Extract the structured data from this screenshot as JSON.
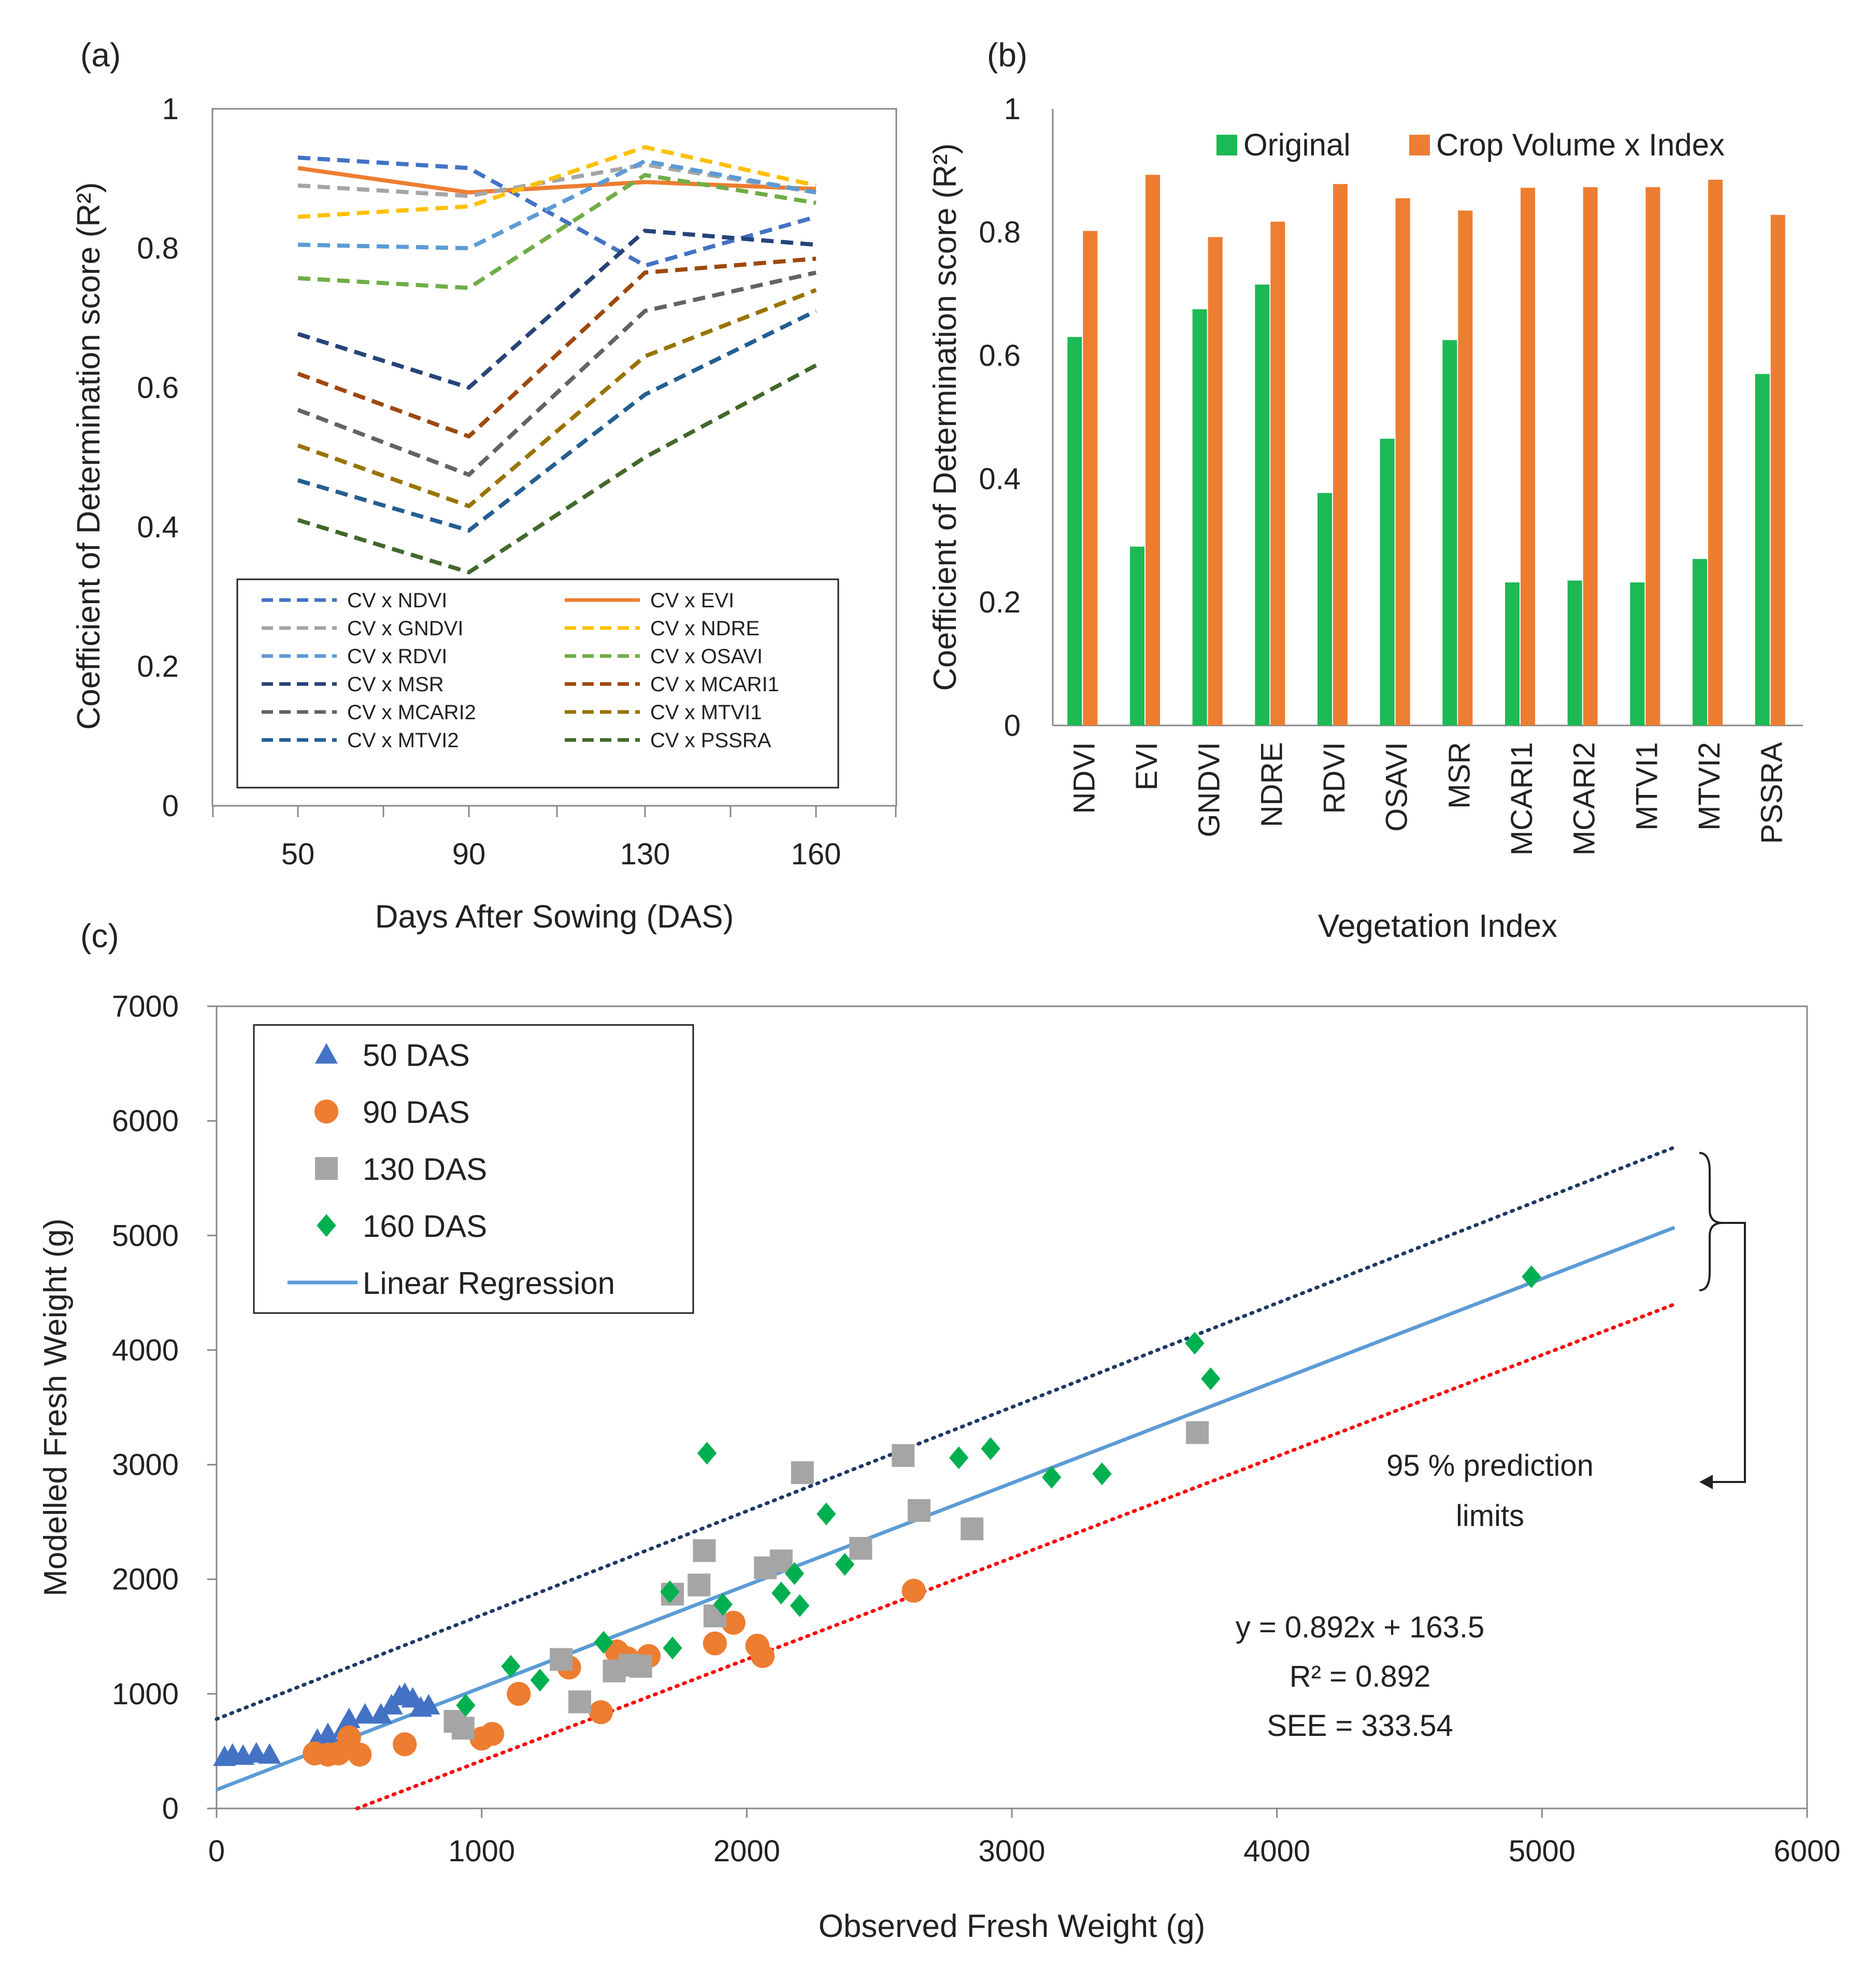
{
  "panels": {
    "a": {
      "label": "(a)"
    },
    "b": {
      "label": "(b)"
    },
    "c": {
      "label": "(c)"
    }
  },
  "colors": {
    "ndvi": "#4472C4",
    "evi": "#ED7D31",
    "gndvi": "#A5A5A5",
    "ndre": "#FFC000",
    "rdvi": "#5B9BD5",
    "osavi": "#70AD47",
    "msr": "#264478",
    "mcari1": "#9E480E",
    "mcari2": "#636363",
    "mtvi1": "#997300",
    "mtvi2": "#255E91",
    "pssra": "#43682B",
    "original": "#1DB954",
    "crop_volume": "#ED7D31",
    "das50": "#4472C4",
    "das90": "#ED7D31",
    "das130": "#A5A5A5",
    "das160": "#00B050",
    "regression": "#5B9BD5",
    "upper_limit": "#1F3864",
    "lower_limit": "#FF0000"
  },
  "chart_data": [
    {
      "id": "a",
      "type": "line",
      "title": "",
      "xlabel": "Days After Sowing (DAS)",
      "ylabel": "Coefficient of Determination score (R²)",
      "categories": [
        "50",
        "90",
        "130",
        "160"
      ],
      "ylim": [
        0,
        1
      ],
      "yticks": [
        "0",
        "0.2",
        "0.4",
        "0.6",
        "0.8",
        "1"
      ],
      "series": [
        {
          "name": "CV x NDVI",
          "key": "ndvi",
          "dash": true,
          "values": [
            0.93,
            0.915,
            0.775,
            0.845
          ]
        },
        {
          "name": "CV x EVI",
          "key": "evi",
          "dash": false,
          "values": [
            0.915,
            0.88,
            0.895,
            0.885
          ]
        },
        {
          "name": "CV x GNDVI",
          "key": "gndvi",
          "dash": true,
          "values": [
            0.89,
            0.875,
            0.92,
            0.88
          ]
        },
        {
          "name": "CV x NDRE",
          "key": "ndre",
          "dash": true,
          "values": [
            0.845,
            0.86,
            0.945,
            0.89
          ]
        },
        {
          "name": "CV x RDVI",
          "key": "rdvi",
          "dash": true,
          "values": [
            0.805,
            0.8,
            0.925,
            0.88
          ]
        },
        {
          "name": "CV x OSAVI",
          "key": "osavi",
          "dash": true,
          "values": [
            0.757,
            0.743,
            0.905,
            0.865
          ]
        },
        {
          "name": "CV x MSR",
          "key": "msr",
          "dash": true,
          "values": [
            0.677,
            0.6,
            0.825,
            0.805
          ]
        },
        {
          "name": "CV x MCARI1",
          "key": "mcari1",
          "dash": true,
          "values": [
            0.62,
            0.53,
            0.765,
            0.785
          ]
        },
        {
          "name": "CV x MCARI2",
          "key": "mcari2",
          "dash": true,
          "values": [
            0.568,
            0.475,
            0.71,
            0.765
          ]
        },
        {
          "name": "CV x MTVI1",
          "key": "mtvi1",
          "dash": true,
          "values": [
            0.517,
            0.43,
            0.645,
            0.74
          ]
        },
        {
          "name": "CV x MTVI2",
          "key": "mtvi2",
          "dash": true,
          "values": [
            0.467,
            0.395,
            0.59,
            0.71
          ]
        },
        {
          "name": "CV x PSSRA",
          "key": "pssra",
          "dash": true,
          "values": [
            0.41,
            0.335,
            0.5,
            0.632
          ]
        }
      ]
    },
    {
      "id": "b",
      "type": "bar",
      "title": "",
      "xlabel": "Vegetation Index",
      "ylabel": "Coefficient of Determination  score (R²)",
      "categories": [
        "NDVI",
        "EVI",
        "GNDVI",
        "NDRE",
        "RDVI",
        "OSAVI",
        "MSR",
        "MCARI1",
        "MCARI2",
        "MTVI1",
        "MTVI2",
        "PSSRA"
      ],
      "ylim": [
        0,
        1
      ],
      "yticks": [
        "0",
        "0.2",
        "0.4",
        "0.6",
        "0.8",
        "1"
      ],
      "series": [
        {
          "name": "Original",
          "key": "original",
          "values": [
            0.63,
            0.29,
            0.675,
            0.715,
            0.377,
            0.465,
            0.625,
            0.232,
            0.235,
            0.232,
            0.27,
            0.57
          ]
        },
        {
          "name": "Crop Volume x Index",
          "key": "crop_volume",
          "values": [
            0.802,
            0.893,
            0.792,
            0.817,
            0.878,
            0.855,
            0.835,
            0.872,
            0.873,
            0.873,
            0.885,
            0.828
          ]
        }
      ]
    },
    {
      "id": "c",
      "type": "scatter",
      "title": "",
      "xlabel": "Observed Fresh Weight (g)",
      "ylabel": "Modelled Fresh Weight (g)",
      "xlim": [
        0,
        6000
      ],
      "ylim": [
        0,
        7000
      ],
      "xticks": [
        "0",
        "1000",
        "2000",
        "3000",
        "4000",
        "5000",
        "6000"
      ],
      "yticks": [
        "0",
        "1000",
        "2000",
        "3000",
        "4000",
        "5000",
        "6000",
        "7000"
      ],
      "series": [
        {
          "name": "50 DAS",
          "key": "das50",
          "marker": "triangle",
          "points": [
            [
              30,
              450
            ],
            [
              60,
              470
            ],
            [
              100,
              460
            ],
            [
              150,
              480
            ],
            [
              200,
              470
            ],
            [
              380,
              600
            ],
            [
              420,
              650
            ],
            [
              480,
              700
            ],
            [
              500,
              780
            ],
            [
              560,
              820
            ],
            [
              620,
              820
            ],
            [
              660,
              900
            ],
            [
              690,
              980
            ],
            [
              710,
              1000
            ],
            [
              740,
              960
            ],
            [
              770,
              880
            ],
            [
              800,
              900
            ]
          ]
        },
        {
          "name": "90 DAS",
          "key": "das90",
          "marker": "circle",
          "points": [
            [
              370,
              480
            ],
            [
              420,
              470
            ],
            [
              460,
              480
            ],
            [
              500,
              620
            ],
            [
              540,
              470
            ],
            [
              710,
              560
            ],
            [
              1000,
              610
            ],
            [
              1040,
              650
            ],
            [
              1140,
              1000
            ],
            [
              1330,
              1230
            ],
            [
              1450,
              840
            ],
            [
              1510,
              1370
            ],
            [
              1550,
              1310
            ],
            [
              1630,
              1330
            ],
            [
              1880,
              1440
            ],
            [
              1950,
              1620
            ],
            [
              2040,
              1420
            ],
            [
              2060,
              1330
            ],
            [
              2630,
              1900
            ]
          ]
        },
        {
          "name": "130 DAS",
          "key": "das130",
          "marker": "square",
          "points": [
            [
              900,
              760
            ],
            [
              930,
              700
            ],
            [
              1300,
              1300
            ],
            [
              1370,
              930
            ],
            [
              1500,
              1200
            ],
            [
              1560,
              1250
            ],
            [
              1600,
              1240
            ],
            [
              1720,
              1870
            ],
            [
              1820,
              1950
            ],
            [
              1840,
              2250
            ],
            [
              1880,
              1680
            ],
            [
              2070,
              2100
            ],
            [
              2130,
              2160
            ],
            [
              2210,
              2930
            ],
            [
              2430,
              2270
            ],
            [
              2590,
              3080
            ],
            [
              2650,
              2600
            ],
            [
              2850,
              2440
            ],
            [
              3700,
              3280
            ]
          ]
        },
        {
          "name": "160 DAS",
          "key": "das160",
          "marker": "diamond",
          "points": [
            [
              940,
              900
            ],
            [
              1110,
              1240
            ],
            [
              1220,
              1120
            ],
            [
              1460,
              1450
            ],
            [
              1710,
              1890
            ],
            [
              1720,
              1400
            ],
            [
              1850,
              3100
            ],
            [
              1910,
              1780
            ],
            [
              2130,
              1880
            ],
            [
              2180,
              2050
            ],
            [
              2200,
              1770
            ],
            [
              2300,
              2570
            ],
            [
              2370,
              2130
            ],
            [
              2800,
              3060
            ],
            [
              2920,
              3140
            ],
            [
              3150,
              2890
            ],
            [
              3340,
              2920
            ],
            [
              3690,
              4060
            ],
            [
              3750,
              3750
            ],
            [
              4960,
              4640
            ]
          ]
        }
      ],
      "regression": {
        "name": "Linear Regression",
        "slope": 0.892,
        "intercept": 163.5,
        "x_range": [
          0,
          5500
        ]
      },
      "prediction_limits": {
        "upper": [
          [
            0,
            780
          ],
          [
            5500,
            5770
          ]
        ],
        "lower": [
          [
            530,
            0
          ],
          [
            5500,
            4400
          ]
        ]
      },
      "annotations": {
        "prediction_label_line1": "95 % prediction",
        "prediction_label_line2": "limits",
        "equation": "y = 0.892x + 163.5",
        "r2": "R² = 0.892",
        "see": "SEE = 333.54"
      }
    }
  ]
}
